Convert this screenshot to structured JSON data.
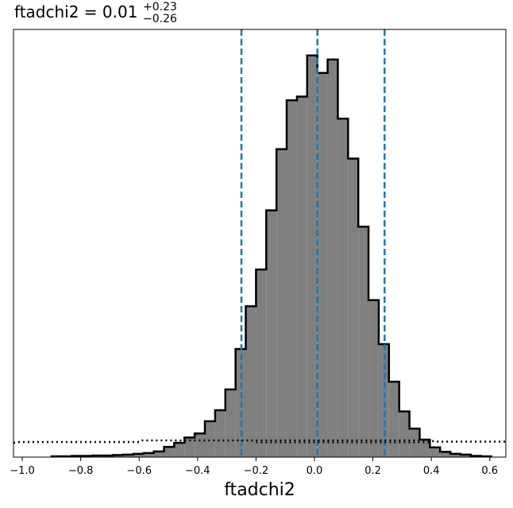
{
  "chart_data": {
    "type": "histogram",
    "title": {
      "main": "ftadchi2 = 0.01",
      "upper": "+0.23",
      "lower": "−0.26"
    },
    "xlabel": "ftadchi2",
    "ylabel": "",
    "xlim": [
      -1.03,
      0.655
    ],
    "ylim": [
      0,
      1.0
    ],
    "x_ticks": [
      -1.0,
      -0.8,
      -0.6,
      -0.4,
      -0.2,
      0.0,
      0.2,
      0.4,
      0.6
    ],
    "x_tick_labels": [
      "−1.0",
      "−0.8",
      "−0.6",
      "−0.4",
      "−0.2",
      "0.0",
      "0.2",
      "0.4",
      "0.6"
    ],
    "grid": false,
    "legend": "none",
    "bin_width": 0.035,
    "bin_start": -0.9,
    "counts": [
      0.002,
      0.002,
      0.003,
      0.003,
      0.004,
      0.004,
      0.005,
      0.006,
      0.008,
      0.01,
      0.014,
      0.025,
      0.035,
      0.048,
      0.058,
      0.088,
      0.115,
      0.166,
      0.265,
      0.37,
      0.46,
      0.605,
      0.755,
      0.875,
      0.884,
      0.985,
      0.942,
      0.975,
      0.83,
      0.732,
      0.565,
      0.385,
      0.277,
      0.185,
      0.112,
      0.07,
      0.043,
      0.024,
      0.013,
      0.008,
      0.006,
      0.003,
      0.002
    ],
    "colors": {
      "fill": "#808080",
      "edge": "#000000",
      "vline": "#1f77b4",
      "prior": "#000000"
    },
    "vlines": [
      {
        "name": "lower-16th",
        "x": -0.25
      },
      {
        "name": "median",
        "x": 0.01
      },
      {
        "name": "upper-84th",
        "x": 0.24
      }
    ],
    "prior": {
      "style": "dotted",
      "points": [
        [
          -1.03,
          0.035
        ],
        [
          -1.01,
          0.037
        ],
        [
          -0.6,
          0.037
        ],
        [
          -0.59,
          0.041
        ],
        [
          0.4,
          0.041
        ],
        [
          0.41,
          0.038
        ],
        [
          0.655,
          0.038
        ]
      ],
      "overlay_points": [
        [
          -0.2,
          0.036
        ],
        [
          0.2,
          0.036
        ],
        [
          0.4,
          0.036
        ]
      ]
    }
  }
}
